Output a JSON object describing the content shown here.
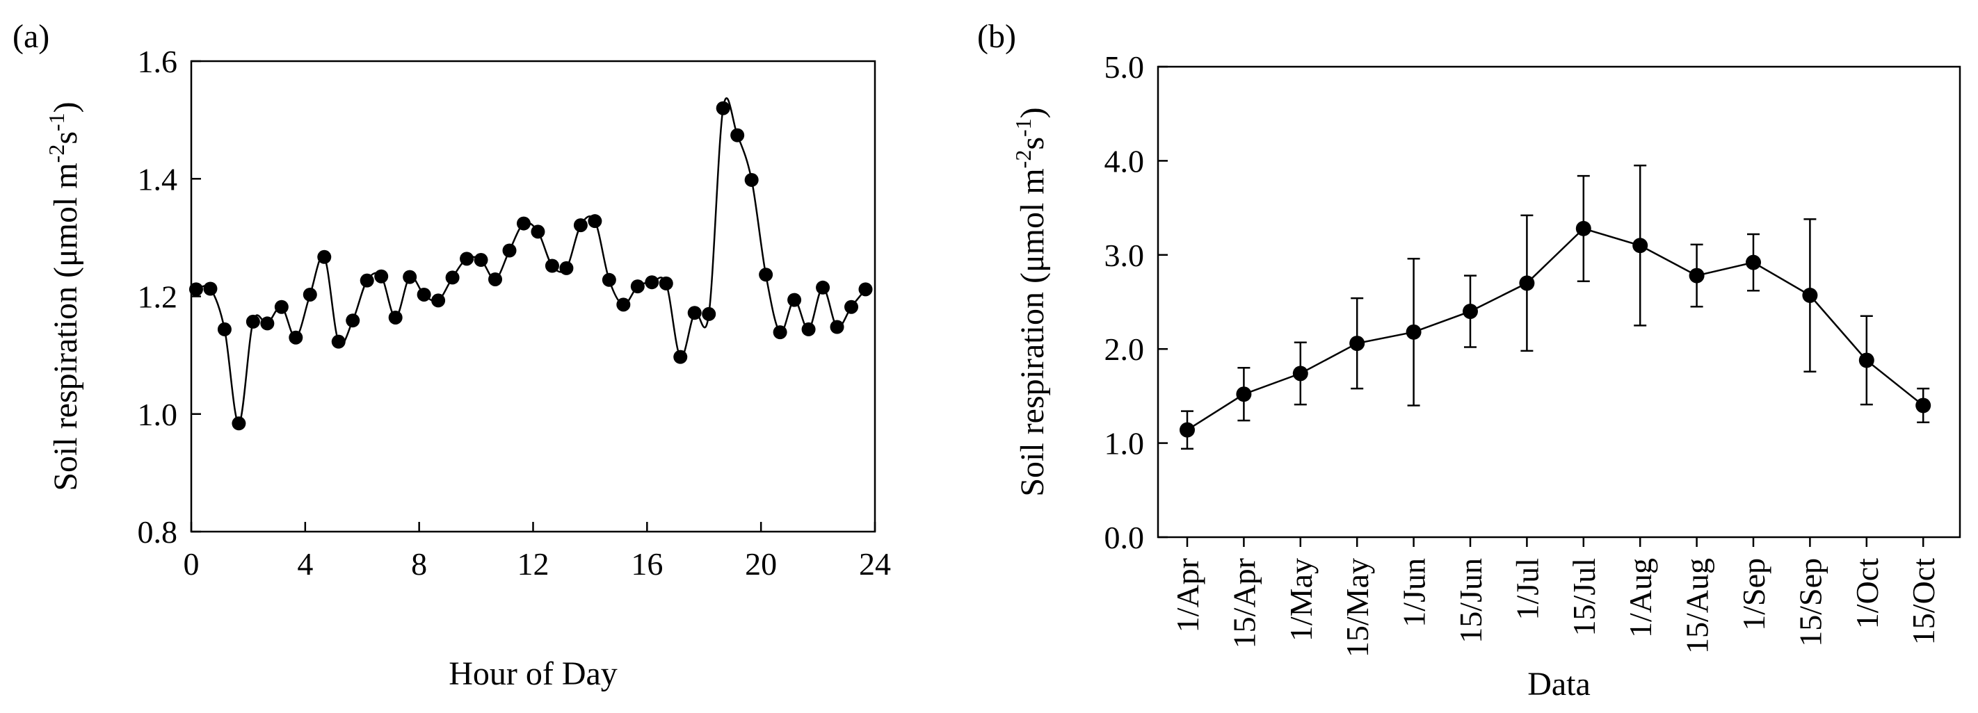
{
  "chart_data": [
    {
      "panel": "(a)",
      "type": "line",
      "xlabel": "Hour of Day",
      "ylabel": "Soil respiration (μmol m-2s-1)",
      "ylabel_parts": [
        "Soil respiration (μmol m",
        "-2",
        "s",
        "-1",
        ")"
      ],
      "xlim": [
        0,
        24
      ],
      "ylim": [
        0.8,
        1.6
      ],
      "xticks": [
        0,
        4,
        8,
        12,
        16,
        20,
        24
      ],
      "xtick_labels": [
        "0",
        "4",
        "8",
        "12",
        "16",
        "20",
        "24"
      ],
      "yticks": [
        0.8,
        1.0,
        1.2,
        1.4,
        1.6
      ],
      "ytick_labels": [
        "0.8",
        "1.0",
        "1.2",
        "1.4",
        "1.6"
      ],
      "grid": false,
      "series": [
        {
          "name": "Soil respiration",
          "x": [
            0.17,
            0.67,
            1.17,
            1.67,
            2.17,
            2.67,
            3.17,
            3.67,
            4.17,
            4.67,
            5.17,
            5.67,
            6.17,
            6.67,
            7.17,
            7.67,
            8.17,
            8.67,
            9.17,
            9.67,
            10.17,
            10.67,
            11.17,
            11.67,
            12.17,
            12.67,
            13.17,
            13.67,
            14.17,
            14.67,
            15.17,
            15.67,
            16.17,
            16.67,
            17.17,
            17.67,
            18.17,
            18.67,
            19.17,
            19.67,
            20.17,
            20.67,
            21.17,
            21.67,
            22.17,
            22.67,
            23.17,
            23.67
          ],
          "y": [
            1.212,
            1.213,
            1.144,
            0.984,
            1.157,
            1.154,
            1.182,
            1.13,
            1.203,
            1.267,
            1.123,
            1.159,
            1.227,
            1.234,
            1.164,
            1.233,
            1.203,
            1.193,
            1.232,
            1.264,
            1.262,
            1.229,
            1.278,
            1.324,
            1.31,
            1.252,
            1.248,
            1.321,
            1.328,
            1.228,
            1.186,
            1.217,
            1.224,
            1.222,
            1.097,
            1.172,
            1.17,
            1.52,
            1.474,
            1.398,
            1.237,
            1.139,
            1.194,
            1.144,
            1.215,
            1.148,
            1.182,
            1.212
          ]
        }
      ]
    },
    {
      "panel": "(b)",
      "type": "line",
      "xlabel": "Data",
      "ylabel": "Soil respiration (μmol m-2s-1)",
      "ylabel_parts": [
        "Soil respiration (μmol m",
        "-2",
        "s",
        "-1",
        ")"
      ],
      "ylim": [
        0.0,
        5.0
      ],
      "yticks": [
        0.0,
        1.0,
        2.0,
        3.0,
        4.0,
        5.0
      ],
      "ytick_labels": [
        "0.0",
        "1.0",
        "2.0",
        "3.0",
        "4.0",
        "5.0"
      ],
      "grid": false,
      "categories": [
        "1/Apr",
        "15/Apr",
        "1/May",
        "15/May",
        "1/Jun",
        "15/Jun",
        "1/Jul",
        "15/Jul",
        "1/Aug",
        "15/Aug",
        "1/Sep",
        "15/Sep",
        "1/Oct",
        "15/Oct"
      ],
      "series": [
        {
          "name": "Soil respiration",
          "values": [
            1.14,
            1.52,
            1.74,
            2.06,
            2.18,
            2.4,
            2.7,
            3.28,
            3.1,
            2.78,
            2.92,
            2.57,
            1.88,
            1.4
          ],
          "error": [
            0.2,
            0.28,
            0.33,
            0.48,
            0.78,
            0.38,
            0.72,
            0.56,
            0.85,
            0.33,
            0.3,
            0.81,
            0.47,
            0.18
          ]
        }
      ]
    }
  ]
}
